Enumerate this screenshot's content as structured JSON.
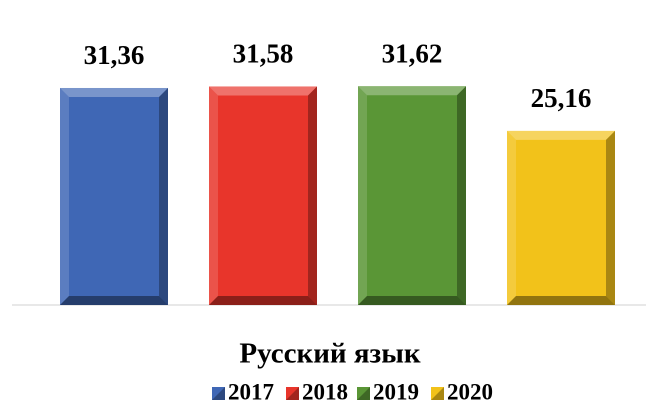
{
  "chart_data": {
    "type": "bar",
    "categories": [
      "Русский язык"
    ],
    "series": [
      {
        "name": "2017",
        "color": "#3f67b5",
        "values": [
          31.36
        ],
        "value_labels": [
          "31,36"
        ]
      },
      {
        "name": "2018",
        "color": "#e8352b",
        "values": [
          31.58
        ],
        "value_labels": [
          "31,58"
        ]
      },
      {
        "name": "2019",
        "color": "#5a9636",
        "values": [
          31.62
        ],
        "value_labels": [
          "31,62"
        ]
      },
      {
        "name": "2020",
        "color": "#f2c21a",
        "values": [
          25.16
        ],
        "value_labels": [
          "25,16"
        ]
      }
    ],
    "legend": "bottom"
  }
}
